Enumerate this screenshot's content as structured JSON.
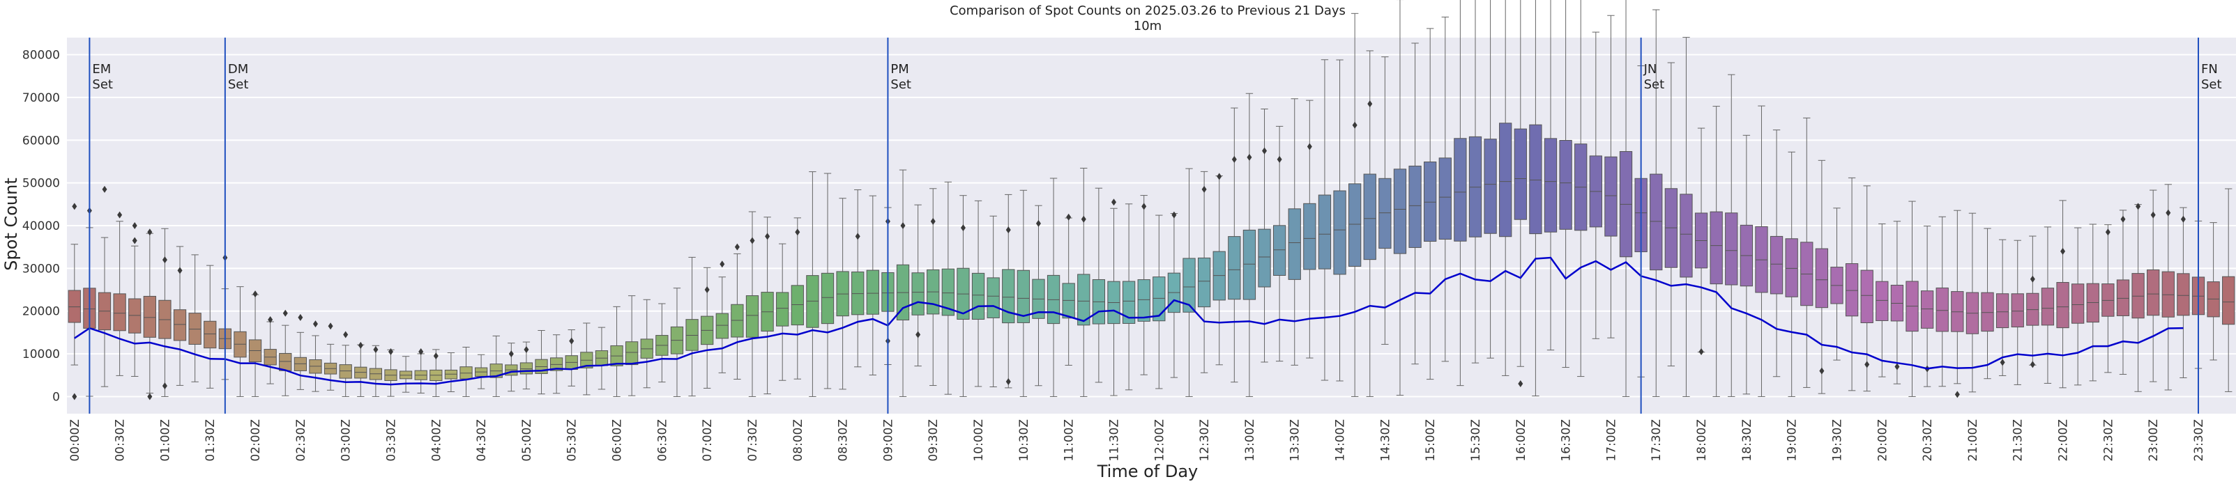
{
  "chart_data": {
    "type": "box",
    "title": "Comparison of Spot Counts on 2025.03.26 to Previous 21 Days",
    "subtitle": "10m",
    "xlabel": "Time of Day",
    "ylabel": "Spot Count",
    "ylim": [
      -4000,
      84000
    ],
    "yticks": [
      0,
      10000,
      20000,
      30000,
      40000,
      50000,
      60000,
      70000,
      80000
    ],
    "ytick_labels": [
      "0",
      "10000",
      "20000",
      "30000",
      "40000",
      "50000",
      "60000",
      "70000",
      "80000"
    ],
    "n_bins": 144,
    "bin_minutes": 10,
    "xtick_labels": [
      "00:00Z",
      "00:30Z",
      "01:00Z",
      "01:30Z",
      "02:00Z",
      "02:30Z",
      "03:00Z",
      "03:30Z",
      "04:00Z",
      "04:30Z",
      "05:00Z",
      "05:30Z",
      "06:00Z",
      "06:30Z",
      "07:00Z",
      "07:30Z",
      "08:00Z",
      "08:30Z",
      "09:00Z",
      "09:30Z",
      "10:00Z",
      "10:30Z",
      "11:00Z",
      "11:30Z",
      "12:00Z",
      "12:30Z",
      "13:00Z",
      "13:30Z",
      "14:00Z",
      "14:30Z",
      "15:00Z",
      "15:30Z",
      "16:00Z",
      "16:30Z",
      "17:00Z",
      "17:30Z",
      "18:00Z",
      "18:30Z",
      "19:00Z",
      "19:30Z",
      "20:00Z",
      "20:30Z",
      "21:00Z",
      "21:30Z",
      "22:00Z",
      "22:30Z",
      "23:00Z",
      "23:30Z"
    ],
    "median_anchors_hour": [
      [
        0,
        21000
      ],
      [
        1,
        18000
      ],
      [
        1.75,
        13000
      ],
      [
        2.25,
        8500
      ],
      [
        3,
        6000
      ],
      [
        3.5,
        5000
      ],
      [
        4,
        5000
      ],
      [
        5,
        6500
      ],
      [
        6,
        9500
      ],
      [
        6.5,
        12000
      ],
      [
        7.5,
        19000
      ],
      [
        8.5,
        24000
      ],
      [
        9.5,
        24500
      ],
      [
        10.5,
        23000
      ],
      [
        11.5,
        22000
      ],
      [
        12,
        23000
      ],
      [
        12.5,
        27000
      ],
      [
        13,
        31000
      ],
      [
        13.5,
        36000
      ],
      [
        14,
        39000
      ],
      [
        14.5,
        43000
      ],
      [
        15,
        45500
      ],
      [
        15.5,
        49000
      ],
      [
        16,
        51000
      ],
      [
        16.5,
        50000
      ],
      [
        17,
        47000
      ],
      [
        17.5,
        41000
      ],
      [
        18,
        36500
      ],
      [
        18.5,
        33000
      ],
      [
        19,
        30000
      ],
      [
        19.5,
        26000
      ],
      [
        20,
        22500
      ],
      [
        20.5,
        20500
      ],
      [
        21,
        19500
      ],
      [
        21.5,
        20000
      ],
      [
        22,
        21000
      ],
      [
        22.5,
        22500
      ],
      [
        23,
        24000
      ],
      [
        23.5,
        23500
      ],
      [
        23.99,
        21500
      ]
    ],
    "box_iqr_halfwidth_fraction": 0.22,
    "series": [
      {
        "name": "2025.03.26",
        "type": "line",
        "color": "#0000cc",
        "anchors_hour": [
          [
            0,
            13000
          ],
          [
            0.17,
            16500
          ],
          [
            0.5,
            13500
          ],
          [
            1,
            12000
          ],
          [
            1.5,
            9000
          ],
          [
            2,
            7500
          ],
          [
            2.5,
            5000
          ],
          [
            3,
            3500
          ],
          [
            3.5,
            3000
          ],
          [
            4,
            3000
          ],
          [
            4.5,
            4500
          ],
          [
            5,
            6000
          ],
          [
            5.5,
            6500
          ],
          [
            6,
            7500
          ],
          [
            6.5,
            8500
          ],
          [
            7,
            10500
          ],
          [
            7.5,
            13000
          ],
          [
            8,
            14500
          ],
          [
            8.5,
            16500
          ],
          [
            9,
            17500
          ],
          [
            9.25,
            23000
          ],
          [
            9.5,
            20500
          ],
          [
            10,
            20500
          ],
          [
            10.5,
            20000
          ],
          [
            11,
            18500
          ],
          [
            11.5,
            19000
          ],
          [
            12,
            20000
          ],
          [
            12.25,
            22500
          ],
          [
            12.5,
            17000
          ],
          [
            13,
            18000
          ],
          [
            13.5,
            17500
          ],
          [
            14,
            19000
          ],
          [
            14.5,
            21000
          ],
          [
            15,
            25000
          ],
          [
            15.25,
            28500
          ],
          [
            15.5,
            27000
          ],
          [
            16,
            29500
          ],
          [
            16.25,
            33000
          ],
          [
            16.5,
            28000
          ],
          [
            17,
            31500
          ],
          [
            17.5,
            26000
          ],
          [
            17.75,
            25000
          ],
          [
            18,
            27000
          ],
          [
            18.25,
            22000
          ],
          [
            18.5,
            19000
          ],
          [
            19,
            14500
          ],
          [
            19.5,
            12000
          ],
          [
            20,
            8500
          ],
          [
            20.5,
            6500
          ],
          [
            21,
            7000
          ],
          [
            21.5,
            9500
          ],
          [
            22,
            10000
          ],
          [
            22.5,
            12500
          ],
          [
            23,
            13500
          ],
          [
            23.25,
            17000
          ],
          [
            23.35,
            16500
          ]
        ]
      }
    ],
    "outlier_points": [
      {
        "t": "00:00Z",
        "v": 44500
      },
      {
        "t": "00:00Z",
        "v": 0
      },
      {
        "t": "00:10Z",
        "v": 43500
      },
      {
        "t": "00:20Z",
        "v": 48500
      },
      {
        "t": "00:30Z",
        "v": 42500
      },
      {
        "t": "00:40Z",
        "v": 40000
      },
      {
        "t": "00:40Z",
        "v": 36500
      },
      {
        "t": "00:50Z",
        "v": 38500
      },
      {
        "t": "00:50Z",
        "v": 0
      },
      {
        "t": "01:00Z",
        "v": 32000
      },
      {
        "t": "01:00Z",
        "v": 2500
      },
      {
        "t": "01:10Z",
        "v": 29500
      },
      {
        "t": "01:40Z",
        "v": 32500
      },
      {
        "t": "02:00Z",
        "v": 24000
      },
      {
        "t": "02:10Z",
        "v": 18000
      },
      {
        "t": "02:20Z",
        "v": 19500
      },
      {
        "t": "02:30Z",
        "v": 18500
      },
      {
        "t": "02:40Z",
        "v": 17000
      },
      {
        "t": "02:50Z",
        "v": 16500
      },
      {
        "t": "03:00Z",
        "v": 14500
      },
      {
        "t": "03:10Z",
        "v": 12000
      },
      {
        "t": "03:20Z",
        "v": 11000
      },
      {
        "t": "03:30Z",
        "v": 10500
      },
      {
        "t": "03:50Z",
        "v": 10500
      },
      {
        "t": "04:00Z",
        "v": 9500
      },
      {
        "t": "04:50Z",
        "v": 10000
      },
      {
        "t": "05:00Z",
        "v": 11000
      },
      {
        "t": "05:30Z",
        "v": 13000
      },
      {
        "t": "07:00Z",
        "v": 25000
      },
      {
        "t": "07:10Z",
        "v": 31000
      },
      {
        "t": "07:20Z",
        "v": 35000
      },
      {
        "t": "07:30Z",
        "v": 36500
      },
      {
        "t": "07:40Z",
        "v": 37500
      },
      {
        "t": "08:00Z",
        "v": 38500
      },
      {
        "t": "08:40Z",
        "v": 37500
      },
      {
        "t": "09:00Z",
        "v": 41000
      },
      {
        "t": "09:10Z",
        "v": 40000
      },
      {
        "t": "09:30Z",
        "v": 41000
      },
      {
        "t": "09:50Z",
        "v": 39500
      },
      {
        "t": "09:00Z",
        "v": 13000
      },
      {
        "t": "09:20Z",
        "v": 14500
      },
      {
        "t": "10:20Z",
        "v": 3500
      },
      {
        "t": "10:20Z",
        "v": 39000
      },
      {
        "t": "10:40Z",
        "v": 40500
      },
      {
        "t": "11:00Z",
        "v": 42000
      },
      {
        "t": "11:10Z",
        "v": 41500
      },
      {
        "t": "11:30Z",
        "v": 45500
      },
      {
        "t": "11:50Z",
        "v": 44500
      },
      {
        "t": "12:10Z",
        "v": 42500
      },
      {
        "t": "12:30Z",
        "v": 48500
      },
      {
        "t": "12:40Z",
        "v": 51500
      },
      {
        "t": "12:50Z",
        "v": 55500
      },
      {
        "t": "13:00Z",
        "v": 56000
      },
      {
        "t": "13:10Z",
        "v": 57500
      },
      {
        "t": "13:20Z",
        "v": 55500
      },
      {
        "t": "13:40Z",
        "v": 58500
      },
      {
        "t": "14:10Z",
        "v": 63500
      },
      {
        "t": "14:20Z",
        "v": 68500
      },
      {
        "t": "16:00Z",
        "v": 3000
      },
      {
        "t": "18:00Z",
        "v": 10500
      },
      {
        "t": "19:20Z",
        "v": 6000
      },
      {
        "t": "19:50Z",
        "v": 7500
      },
      {
        "t": "20:10Z",
        "v": 7000
      },
      {
        "t": "20:30Z",
        "v": 6500
      },
      {
        "t": "20:50Z",
        "v": 500
      },
      {
        "t": "21:20Z",
        "v": 8000
      },
      {
        "t": "21:40Z",
        "v": 7500
      },
      {
        "t": "21:40Z",
        "v": 27500
      },
      {
        "t": "22:00Z",
        "v": 34000
      },
      {
        "t": "22:30Z",
        "v": 38500
      },
      {
        "t": "22:40Z",
        "v": 41500
      },
      {
        "t": "22:50Z",
        "v": 44500
      },
      {
        "t": "23:00Z",
        "v": 42500
      },
      {
        "t": "23:10Z",
        "v": 43000
      },
      {
        "t": "23:20Z",
        "v": 41500
      }
    ],
    "annotations": [
      {
        "time": "00:10Z",
        "lines": [
          "EM",
          "Set"
        ]
      },
      {
        "time": "01:40Z",
        "lines": [
          "DM",
          "Set"
        ]
      },
      {
        "time": "09:00Z",
        "lines": [
          "PM",
          "Set"
        ]
      },
      {
        "time": "17:20Z",
        "lines": [
          "JN",
          "Set"
        ]
      },
      {
        "time": "23:30Z",
        "lines": [
          "FN",
          "Set"
        ]
      }
    ],
    "grid": true,
    "legend": "none"
  }
}
